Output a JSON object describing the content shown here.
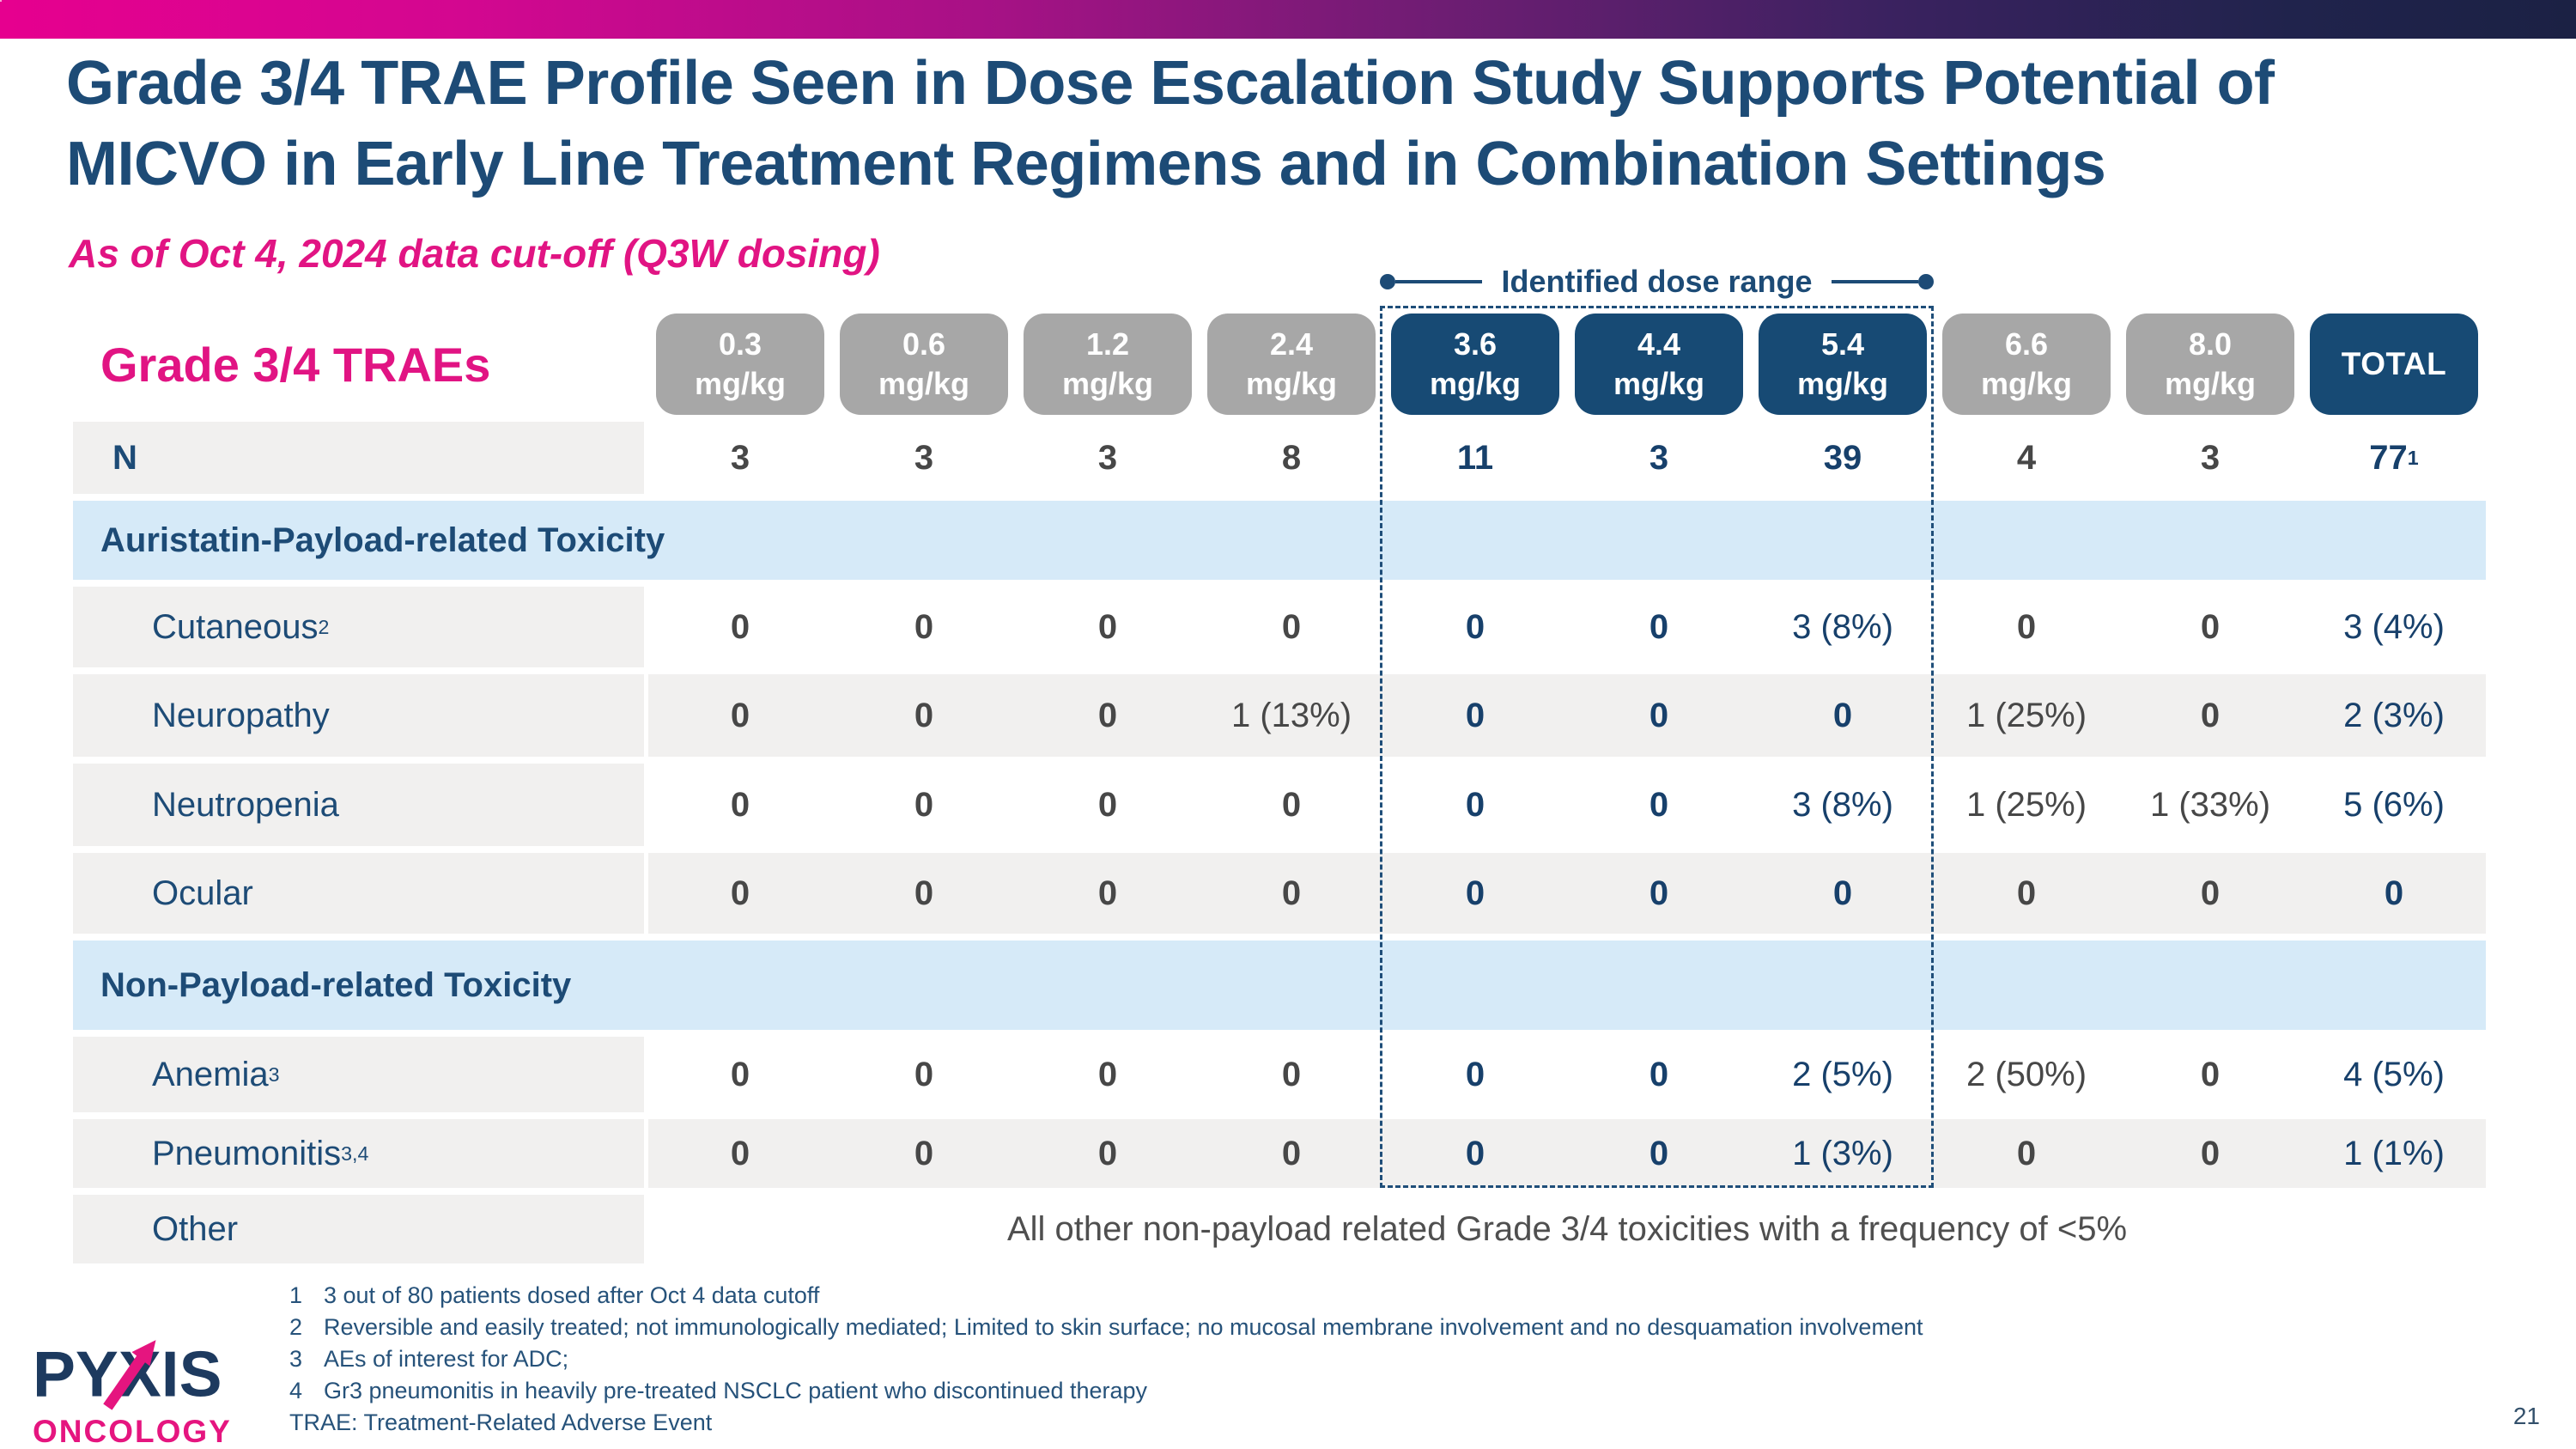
{
  "slide": {
    "title_line1": "Grade 3/4 TRAE Profile Seen in Dose Escalation Study Supports Potential of",
    "title_line2": "MICVO in Early Line Treatment Regimens and in Combination Settings",
    "subtitle": "As of Oct 4, 2024 data cut-off (Q3W dosing)",
    "page_number": "21"
  },
  "annotation": {
    "label": "Identified dose range"
  },
  "logo": {
    "wordmark": "PYXIS",
    "sub": "ONCOLOGY"
  },
  "colors": {
    "accent_magenta": "#e11483",
    "navy": "#1d4b76",
    "pill_navy": "#174a74",
    "pill_gray": "#a7a7a7",
    "section_blue": "#d6eaf8",
    "row_gray": "#f1f0ef",
    "banner_gradient_left": "#e6008f",
    "banner_gradient_right": "#1b2144"
  },
  "table": {
    "corner_label": "Grade 3/4 TRAEs",
    "columns": [
      {
        "dose": "0.3",
        "unit": "mg/kg",
        "style": "gray"
      },
      {
        "dose": "0.6",
        "unit": "mg/kg",
        "style": "gray"
      },
      {
        "dose": "1.2",
        "unit": "mg/kg",
        "style": "gray"
      },
      {
        "dose": "2.4",
        "unit": "mg/kg",
        "style": "gray"
      },
      {
        "dose": "3.6",
        "unit": "mg/kg",
        "style": "navy"
      },
      {
        "dose": "4.4",
        "unit": "mg/kg",
        "style": "navy"
      },
      {
        "dose": "5.4",
        "unit": "mg/kg",
        "style": "navy"
      },
      {
        "dose": "6.6",
        "unit": "mg/kg",
        "style": "gray"
      },
      {
        "dose": "8.0",
        "unit": "mg/kg",
        "style": "gray"
      },
      {
        "dose": "TOTAL",
        "unit": "",
        "style": "total"
      }
    ],
    "in_range_column_indexes": [
      4,
      5,
      6
    ],
    "rows": [
      {
        "kind": "data",
        "label": "N",
        "sup": "",
        "emphasis": "bold",
        "zebra": "white",
        "values": [
          {
            "v": "3"
          },
          {
            "v": "3"
          },
          {
            "v": "3"
          },
          {
            "v": "8"
          },
          {
            "v": "11"
          },
          {
            "v": "3"
          },
          {
            "v": "39"
          },
          {
            "v": "4"
          },
          {
            "v": "3"
          },
          {
            "v": "77",
            "sup": "1"
          }
        ]
      },
      {
        "kind": "section",
        "label": "Auristatin-Payload-related Toxicity"
      },
      {
        "kind": "data",
        "label": "Cutaneous",
        "sup": "2",
        "zebra": "white",
        "values": [
          {
            "v": "0"
          },
          {
            "v": "0"
          },
          {
            "v": "0"
          },
          {
            "v": "0"
          },
          {
            "v": "0"
          },
          {
            "v": "0"
          },
          {
            "v": "3 (8%)"
          },
          {
            "v": "0"
          },
          {
            "v": "0"
          },
          {
            "v": "3 (4%)"
          }
        ]
      },
      {
        "kind": "data",
        "label": "Neuropathy",
        "sup": "",
        "zebra": "gray",
        "values": [
          {
            "v": "0"
          },
          {
            "v": "0"
          },
          {
            "v": "0"
          },
          {
            "v": "1 (13%)"
          },
          {
            "v": "0"
          },
          {
            "v": "0"
          },
          {
            "v": "0"
          },
          {
            "v": "1 (25%)"
          },
          {
            "v": "0"
          },
          {
            "v": "2 (3%)"
          }
        ]
      },
      {
        "kind": "data",
        "label": "Neutropenia",
        "sup": "",
        "zebra": "white",
        "values": [
          {
            "v": "0"
          },
          {
            "v": "0"
          },
          {
            "v": "0"
          },
          {
            "v": "0"
          },
          {
            "v": "0"
          },
          {
            "v": "0"
          },
          {
            "v": "3 (8%)"
          },
          {
            "v": "1 (25%)"
          },
          {
            "v": "1 (33%)"
          },
          {
            "v": "5 (6%)"
          }
        ]
      },
      {
        "kind": "data",
        "label": "Ocular",
        "sup": "",
        "zebra": "gray",
        "values": [
          {
            "v": "0"
          },
          {
            "v": "0"
          },
          {
            "v": "0"
          },
          {
            "v": "0"
          },
          {
            "v": "0"
          },
          {
            "v": "0"
          },
          {
            "v": "0"
          },
          {
            "v": "0"
          },
          {
            "v": "0"
          },
          {
            "v": "0"
          }
        ]
      },
      {
        "kind": "section",
        "label": "Non-Payload-related Toxicity"
      },
      {
        "kind": "data",
        "label": "Anemia",
        "sup": "3",
        "zebra": "white",
        "values": [
          {
            "v": "0"
          },
          {
            "v": "0"
          },
          {
            "v": "0"
          },
          {
            "v": "0"
          },
          {
            "v": "0"
          },
          {
            "v": "0"
          },
          {
            "v": "2 (5%)"
          },
          {
            "v": "2 (50%)"
          },
          {
            "v": "0"
          },
          {
            "v": "4 (5%)"
          }
        ]
      },
      {
        "kind": "data",
        "label": "Pneumonitis",
        "sup": "3,4",
        "zebra": "gray",
        "values": [
          {
            "v": "0"
          },
          {
            "v": "0"
          },
          {
            "v": "0"
          },
          {
            "v": "0"
          },
          {
            "v": "0"
          },
          {
            "v": "0"
          },
          {
            "v": "1 (3%)"
          },
          {
            "v": "0"
          },
          {
            "v": "0"
          },
          {
            "v": "1 (1%)"
          }
        ]
      },
      {
        "kind": "note",
        "label": "Other",
        "zebra": "white",
        "note": "All other non-payload related Grade 3/4 toxicities with a frequency of <5%"
      }
    ]
  },
  "footnotes": [
    {
      "num": "1",
      "text": "3 out of 80 patients dosed after Oct 4 data cutoff"
    },
    {
      "num": "2",
      "text": "Reversible and easily treated; not immunologically mediated; Limited to skin surface; no mucosal membrane involvement and no desquamation involvement"
    },
    {
      "num": "3",
      "text": "AEs of interest for ADC;"
    },
    {
      "num": "4",
      "text": "Gr3 pneumonitis in heavily pre-treated NSCLC patient who discontinued therapy"
    },
    {
      "num": "",
      "text": "TRAE: Treatment-Related Adverse Event"
    }
  ]
}
